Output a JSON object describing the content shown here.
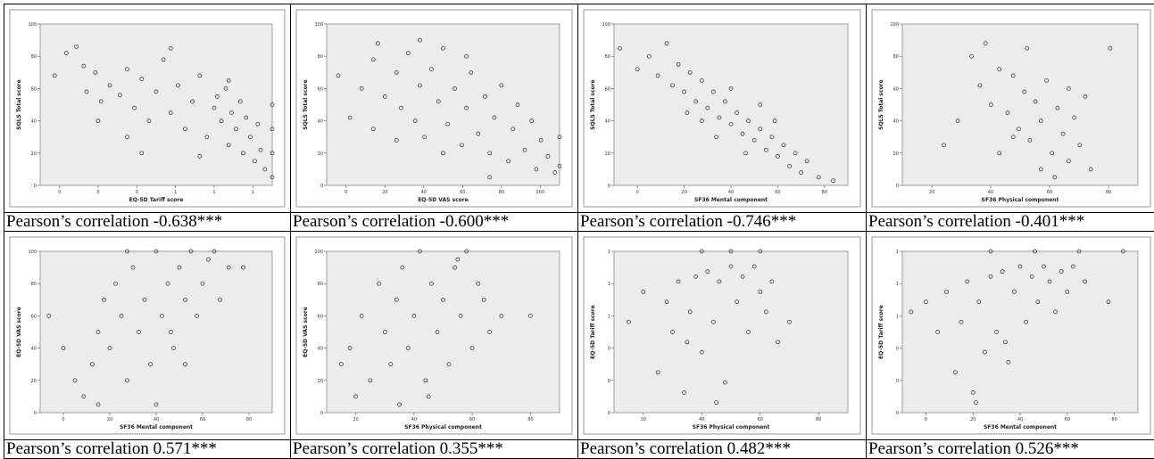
{
  "chart_data": [
    {
      "type": "scatter",
      "xlabel": "EQ-5D Tariff score",
      "ylabel": "SQLS Total score",
      "yticks": [
        "0",
        "20",
        "40",
        "60",
        "80",
        "100"
      ],
      "xticks": [
        "0",
        "0",
        "0",
        "1",
        "1",
        "1"
      ],
      "ylim": [
        0,
        100
      ],
      "xlim": [
        -0.6,
        1.0
      ],
      "grid": false,
      "caption": "Pearson’s correlation -0.638***",
      "points": [
        [
          -0.5,
          68
        ],
        [
          -0.42,
          82
        ],
        [
          -0.35,
          86
        ],
        [
          -0.3,
          74
        ],
        [
          -0.28,
          58
        ],
        [
          -0.22,
          70
        ],
        [
          -0.18,
          52
        ],
        [
          -0.12,
          62
        ],
        [
          -0.05,
          56
        ],
        [
          0.0,
          72
        ],
        [
          0.05,
          48
        ],
        [
          0.1,
          66
        ],
        [
          0.15,
          40
        ],
        [
          0.2,
          58
        ],
        [
          0.25,
          78
        ],
        [
          0.3,
          45
        ],
        [
          0.35,
          62
        ],
        [
          0.4,
          35
        ],
        [
          0.45,
          52
        ],
        [
          0.5,
          68
        ],
        [
          0.55,
          30
        ],
        [
          0.6,
          48
        ],
        [
          0.62,
          55
        ],
        [
          0.65,
          40
        ],
        [
          0.68,
          60
        ],
        [
          0.7,
          25
        ],
        [
          0.72,
          45
        ],
        [
          0.75,
          35
        ],
        [
          0.78,
          52
        ],
        [
          0.8,
          20
        ],
        [
          0.82,
          42
        ],
        [
          0.85,
          30
        ],
        [
          0.88,
          15
        ],
        [
          0.9,
          38
        ],
        [
          0.92,
          22
        ],
        [
          0.95,
          10
        ],
        [
          1.0,
          5
        ],
        [
          1.0,
          20
        ],
        [
          1.0,
          35
        ],
        [
          1.0,
          50
        ],
        [
          0.0,
          30
        ],
        [
          0.1,
          20
        ],
        [
          -0.2,
          40
        ],
        [
          0.3,
          85
        ],
        [
          0.5,
          18
        ],
        [
          0.7,
          65
        ]
      ]
    },
    {
      "type": "scatter",
      "xlabel": "EQ-5D VAS score",
      "ylabel": "SQLS Total score",
      "yticks": [
        "0",
        "20",
        "40",
        "60",
        "80",
        "100"
      ],
      "xticks": [
        "0",
        "20",
        "40",
        "60",
        "80",
        "100"
      ],
      "ylim": [
        0,
        100
      ],
      "xlim": [
        0,
        100
      ],
      "grid": false,
      "caption": "Pearson’s correlation -0.600***",
      "points": [
        [
          5,
          68
        ],
        [
          10,
          42
        ],
        [
          15,
          60
        ],
        [
          20,
          78
        ],
        [
          22,
          88
        ],
        [
          25,
          55
        ],
        [
          30,
          70
        ],
        [
          32,
          48
        ],
        [
          35,
          82
        ],
        [
          38,
          40
        ],
        [
          40,
          62
        ],
        [
          42,
          30
        ],
        [
          45,
          72
        ],
        [
          48,
          52
        ],
        [
          50,
          85
        ],
        [
          52,
          38
        ],
        [
          55,
          60
        ],
        [
          58,
          25
        ],
        [
          60,
          48
        ],
        [
          62,
          70
        ],
        [
          65,
          32
        ],
        [
          68,
          55
        ],
        [
          70,
          20
        ],
        [
          72,
          42
        ],
        [
          75,
          62
        ],
        [
          78,
          15
        ],
        [
          80,
          35
        ],
        [
          82,
          50
        ],
        [
          85,
          22
        ],
        [
          88,
          40
        ],
        [
          90,
          10
        ],
        [
          92,
          28
        ],
        [
          95,
          18
        ],
        [
          98,
          8
        ],
        [
          100,
          30
        ],
        [
          100,
          12
        ],
        [
          50,
          20
        ],
        [
          30,
          28
        ],
        [
          60,
          80
        ],
        [
          40,
          90
        ],
        [
          70,
          5
        ],
        [
          20,
          35
        ]
      ]
    },
    {
      "type": "scatter",
      "xlabel": "SF36 Mental component",
      "ylabel": "SQLS Total score",
      "yticks": [
        "0",
        "20",
        "40",
        "60",
        "80",
        "100"
      ],
      "xticks": [
        "0",
        "20",
        "40",
        "60",
        "80"
      ],
      "ylim": [
        0,
        100
      ],
      "xlim": [
        0,
        80
      ],
      "grid": false,
      "caption": "Pearson’s correlation -0.746***",
      "points": [
        [
          2,
          85
        ],
        [
          8,
          72
        ],
        [
          12,
          80
        ],
        [
          15,
          68
        ],
        [
          18,
          88
        ],
        [
          20,
          62
        ],
        [
          22,
          75
        ],
        [
          24,
          58
        ],
        [
          26,
          70
        ],
        [
          28,
          52
        ],
        [
          30,
          65
        ],
        [
          32,
          48
        ],
        [
          34,
          58
        ],
        [
          36,
          42
        ],
        [
          38,
          52
        ],
        [
          40,
          38
        ],
        [
          42,
          45
        ],
        [
          44,
          32
        ],
        [
          46,
          40
        ],
        [
          48,
          28
        ],
        [
          50,
          35
        ],
        [
          52,
          22
        ],
        [
          54,
          30
        ],
        [
          56,
          18
        ],
        [
          58,
          25
        ],
        [
          60,
          12
        ],
        [
          62,
          20
        ],
        [
          64,
          8
        ],
        [
          66,
          15
        ],
        [
          70,
          5
        ],
        [
          75,
          3
        ],
        [
          30,
          40
        ],
        [
          40,
          60
        ],
        [
          50,
          50
        ],
        [
          25,
          45
        ],
        [
          45,
          20
        ],
        [
          55,
          40
        ],
        [
          35,
          30
        ]
      ]
    },
    {
      "type": "scatter",
      "xlabel": "SF36 Physical component",
      "ylabel": "SQLS Total score",
      "yticks": [
        "0",
        "20",
        "40",
        "60",
        "80",
        "100"
      ],
      "xticks": [
        "20",
        "40",
        "60",
        "80"
      ],
      "ylim": [
        0,
        100
      ],
      "xlim": [
        0,
        85
      ],
      "grid": false,
      "caption": "Pearson’s correlation -0.401***",
      "points": [
        [
          15,
          25
        ],
        [
          20,
          40
        ],
        [
          25,
          80
        ],
        [
          28,
          62
        ],
        [
          30,
          88
        ],
        [
          32,
          50
        ],
        [
          35,
          72
        ],
        [
          38,
          45
        ],
        [
          40,
          68
        ],
        [
          42,
          35
        ],
        [
          44,
          58
        ],
        [
          46,
          28
        ],
        [
          48,
          52
        ],
        [
          50,
          40
        ],
        [
          52,
          65
        ],
        [
          54,
          20
        ],
        [
          56,
          48
        ],
        [
          58,
          32
        ],
        [
          60,
          15
        ],
        [
          62,
          42
        ],
        [
          64,
          25
        ],
        [
          66,
          55
        ],
        [
          68,
          10
        ],
        [
          35,
          20
        ],
        [
          45,
          85
        ],
        [
          55,
          5
        ],
        [
          60,
          60
        ],
        [
          75,
          85
        ],
        [
          40,
          30
        ],
        [
          50,
          10
        ]
      ]
    },
    {
      "type": "scatter",
      "xlabel": "SF36 Mental component",
      "ylabel": "EQ-5D VAS score",
      "yticks": [
        "0",
        "20",
        "40",
        "60",
        "80",
        "100"
      ],
      "xticks": [
        "0",
        "20",
        "40",
        "60",
        "80"
      ],
      "ylim": [
        0,
        100
      ],
      "xlim": [
        0,
        80
      ],
      "grid": false,
      "caption": "Pearson’s correlation 0.571***",
      "points": [
        [
          3,
          60
        ],
        [
          8,
          40
        ],
        [
          12,
          20
        ],
        [
          15,
          10
        ],
        [
          18,
          30
        ],
        [
          20,
          50
        ],
        [
          22,
          70
        ],
        [
          24,
          40
        ],
        [
          26,
          80
        ],
        [
          28,
          60
        ],
        [
          30,
          20
        ],
        [
          32,
          90
        ],
        [
          34,
          50
        ],
        [
          36,
          70
        ],
        [
          38,
          30
        ],
        [
          40,
          100
        ],
        [
          42,
          60
        ],
        [
          44,
          80
        ],
        [
          46,
          40
        ],
        [
          48,
          90
        ],
        [
          50,
          70
        ],
        [
          52,
          100
        ],
        [
          54,
          60
        ],
        [
          56,
          80
        ],
        [
          58,
          95
        ],
        [
          60,
          100
        ],
        [
          62,
          70
        ],
        [
          65,
          90
        ],
        [
          70,
          90
        ],
        [
          40,
          5
        ],
        [
          30,
          100
        ],
        [
          50,
          30
        ],
        [
          20,
          5
        ],
        [
          45,
          50
        ]
      ]
    },
    {
      "type": "scatter",
      "xlabel": "SF36 Physical component",
      "ylabel": "EQ-5D VAS score",
      "yticks": [
        "0",
        "20",
        "40",
        "60",
        "80",
        "100"
      ],
      "xticks": [
        "20",
        "40",
        "60",
        "80"
      ],
      "ylim": [
        0,
        100
      ],
      "xlim": [
        10,
        90
      ],
      "grid": false,
      "caption": "Pearson’s correlation 0.355***",
      "points": [
        [
          15,
          30
        ],
        [
          18,
          40
        ],
        [
          20,
          10
        ],
        [
          22,
          60
        ],
        [
          25,
          20
        ],
        [
          28,
          80
        ],
        [
          30,
          50
        ],
        [
          32,
          30
        ],
        [
          34,
          70
        ],
        [
          36,
          90
        ],
        [
          38,
          40
        ],
        [
          40,
          60
        ],
        [
          42,
          100
        ],
        [
          44,
          20
        ],
        [
          46,
          80
        ],
        [
          48,
          50
        ],
        [
          50,
          70
        ],
        [
          52,
          30
        ],
        [
          54,
          90
        ],
        [
          56,
          60
        ],
        [
          58,
          100
        ],
        [
          60,
          40
        ],
        [
          62,
          80
        ],
        [
          64,
          70
        ],
        [
          66,
          50
        ],
        [
          70,
          60
        ],
        [
          80,
          60
        ],
        [
          35,
          5
        ],
        [
          45,
          10
        ],
        [
          55,
          95
        ]
      ]
    },
    {
      "type": "scatter",
      "xlabel": "SF36 Physical component",
      "ylabel": "EQ-5D Tariff score",
      "yticks": [
        "0",
        "0",
        "0",
        "1",
        "1",
        "1"
      ],
      "xticks": [
        "20",
        "40",
        "60",
        "80"
      ],
      "ylim": [
        -0.6,
        1.0
      ],
      "xlim": [
        10,
        90
      ],
      "grid": false,
      "caption": "Pearson’s correlation 0.482***",
      "points": [
        [
          15,
          0.3
        ],
        [
          20,
          0.6
        ],
        [
          25,
          -0.2
        ],
        [
          28,
          0.5
        ],
        [
          30,
          0.2
        ],
        [
          32,
          0.7
        ],
        [
          34,
          -0.4
        ],
        [
          36,
          0.4
        ],
        [
          38,
          0.75
        ],
        [
          40,
          0.0
        ],
        [
          42,
          0.8
        ],
        [
          44,
          0.3
        ],
        [
          46,
          0.7
        ],
        [
          48,
          -0.3
        ],
        [
          50,
          0.85
        ],
        [
          52,
          0.5
        ],
        [
          54,
          0.75
        ],
        [
          56,
          0.2
        ],
        [
          58,
          0.85
        ],
        [
          60,
          0.6
        ],
        [
          62,
          0.4
        ],
        [
          64,
          0.7
        ],
        [
          66,
          0.1
        ],
        [
          40,
          1.0
        ],
        [
          50,
          1.0
        ],
        [
          60,
          1.0
        ],
        [
          70,
          0.3
        ],
        [
          45,
          -0.5
        ],
        [
          35,
          0.1
        ]
      ]
    },
    {
      "type": "scatter",
      "xlabel": "SF36 Mental component",
      "ylabel": "EQ-5D Tariff score",
      "yticks": [
        "0",
        "0",
        "0",
        "1",
        "1",
        "1"
      ],
      "xticks": [
        "0",
        "20",
        "40",
        "60",
        "80"
      ],
      "ylim": [
        -0.6,
        1.0
      ],
      "xlim": [
        0,
        80
      ],
      "grid": false,
      "caption": "Pearson’s correlation 0.526***",
      "points": [
        [
          3,
          0.4
        ],
        [
          8,
          0.5
        ],
        [
          12,
          0.2
        ],
        [
          15,
          0.6
        ],
        [
          18,
          -0.2
        ],
        [
          20,
          0.3
        ],
        [
          22,
          0.7
        ],
        [
          24,
          -0.4
        ],
        [
          26,
          0.5
        ],
        [
          28,
          0.0
        ],
        [
          30,
          0.75
        ],
        [
          32,
          0.2
        ],
        [
          34,
          0.8
        ],
        [
          36,
          -0.1
        ],
        [
          38,
          0.6
        ],
        [
          40,
          0.85
        ],
        [
          42,
          0.3
        ],
        [
          44,
          0.75
        ],
        [
          46,
          0.5
        ],
        [
          48,
          0.85
        ],
        [
          50,
          0.7
        ],
        [
          52,
          0.4
        ],
        [
          54,
          0.8
        ],
        [
          56,
          0.6
        ],
        [
          58,
          0.85
        ],
        [
          62,
          0.7
        ],
        [
          70,
          0.5
        ],
        [
          30,
          1.0
        ],
        [
          45,
          1.0
        ],
        [
          60,
          1.0
        ],
        [
          75,
          1.0
        ],
        [
          25,
          -0.5
        ],
        [
          35,
          0.1
        ]
      ]
    }
  ]
}
